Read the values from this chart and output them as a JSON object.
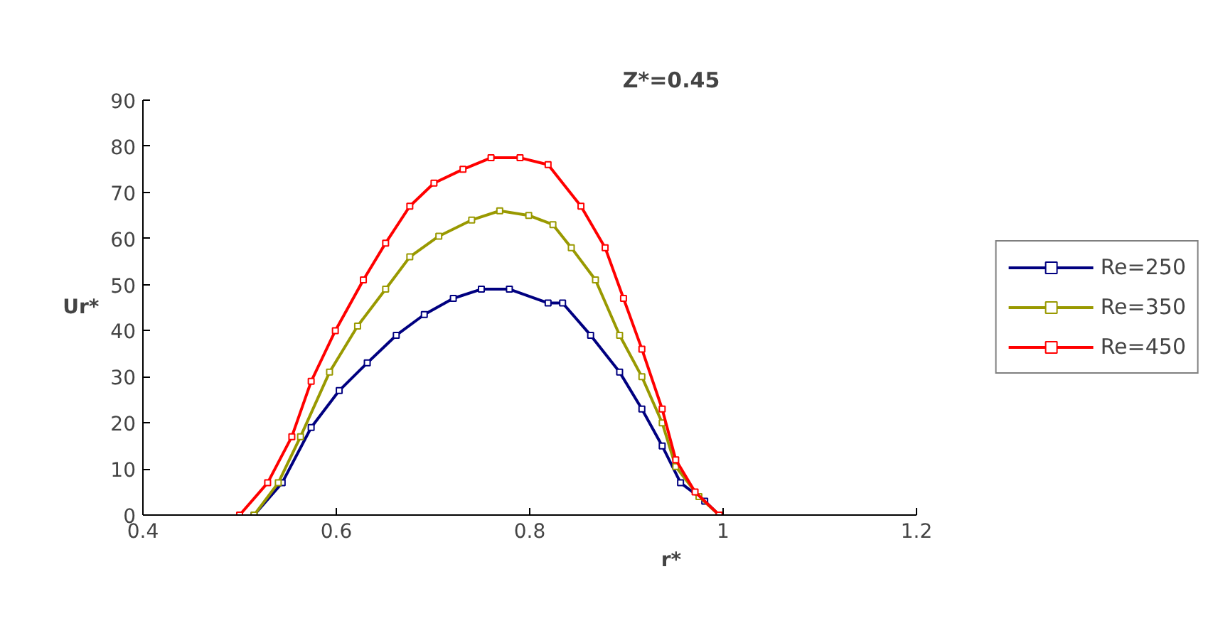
{
  "chart_data": {
    "type": "line",
    "title": "Z*=0.45",
    "xlabel": "r*",
    "ylabel": "Ur*",
    "xlim": [
      0.4,
      1.2
    ],
    "xticks": [
      0.4,
      0.6,
      0.8,
      1,
      1.2
    ],
    "ylim": [
      0,
      90
    ],
    "yticks": [
      0,
      10,
      20,
      30,
      40,
      50,
      60,
      70,
      80,
      90
    ],
    "grid": false,
    "legend": "right",
    "marker": "square",
    "line_style": "solid",
    "series": [
      {
        "name": "Re=250",
        "color": "#000080",
        "x": [
          0.515,
          0.544,
          0.574,
          0.603,
          0.632,
          0.662,
          0.691,
          0.721,
          0.75,
          0.779,
          0.819,
          0.834,
          0.863,
          0.893,
          0.916,
          0.937,
          0.956,
          0.981,
          0.996
        ],
        "values": [
          0,
          7,
          19,
          27,
          33,
          39,
          43.5,
          47,
          49,
          49,
          46,
          46,
          39,
          31,
          23,
          15,
          7,
          3,
          0
        ]
      },
      {
        "name": "Re=350",
        "color": "#999900",
        "x": [
          0.515,
          0.54,
          0.563,
          0.593,
          0.622,
          0.651,
          0.676,
          0.706,
          0.74,
          0.769,
          0.799,
          0.824,
          0.843,
          0.868,
          0.893,
          0.916,
          0.937,
          0.951,
          0.975,
          0.996
        ],
        "values": [
          0,
          7,
          17,
          31,
          41,
          49,
          56,
          60.5,
          64,
          66,
          65,
          63,
          58,
          51,
          39,
          30,
          20,
          10.5,
          4,
          0
        ]
      },
      {
        "name": "Re=450",
        "color": "#ff0000",
        "x": [
          0.5,
          0.529,
          0.554,
          0.574,
          0.599,
          0.628,
          0.651,
          0.676,
          0.701,
          0.731,
          0.76,
          0.79,
          0.819,
          0.853,
          0.878,
          0.897,
          0.916,
          0.937,
          0.951,
          0.971,
          0.996
        ],
        "values": [
          0,
          7,
          17,
          29,
          40,
          51,
          59,
          67,
          72,
          75,
          77.5,
          77.5,
          76,
          67,
          58,
          47,
          36,
          23,
          12,
          5,
          0
        ]
      }
    ]
  }
}
